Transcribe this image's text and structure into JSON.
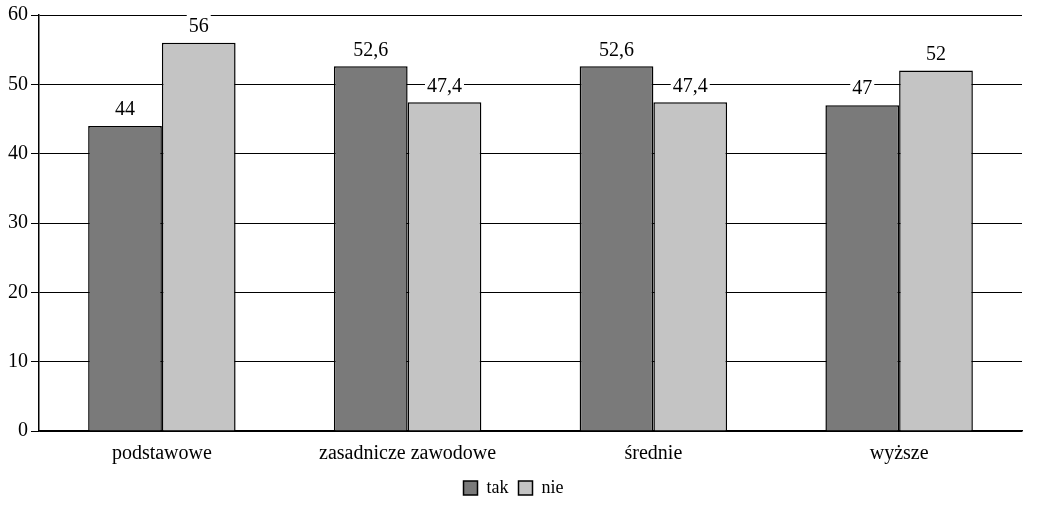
{
  "chart_data": {
    "type": "bar",
    "categories": [
      "podstawowe",
      "zasadnicze zawodowe",
      "średnie",
      "wyższe"
    ],
    "series": [
      {
        "name": "tak",
        "color": "#7a7a7a",
        "values": [
          44,
          52.6,
          52.6,
          47
        ],
        "value_labels": [
          "44",
          "52,6",
          "52,6",
          "47"
        ]
      },
      {
        "name": "nie",
        "color": "#c4c4c4",
        "values": [
          56,
          47.4,
          47.4,
          52
        ],
        "value_labels": [
          "56",
          "47,4",
          "47,4",
          "52"
        ]
      }
    ],
    "ylim": [
      0,
      60
    ],
    "yticks": [
      0,
      10,
      20,
      30,
      40,
      50,
      60
    ],
    "grid": "y",
    "legend": "bottom"
  }
}
